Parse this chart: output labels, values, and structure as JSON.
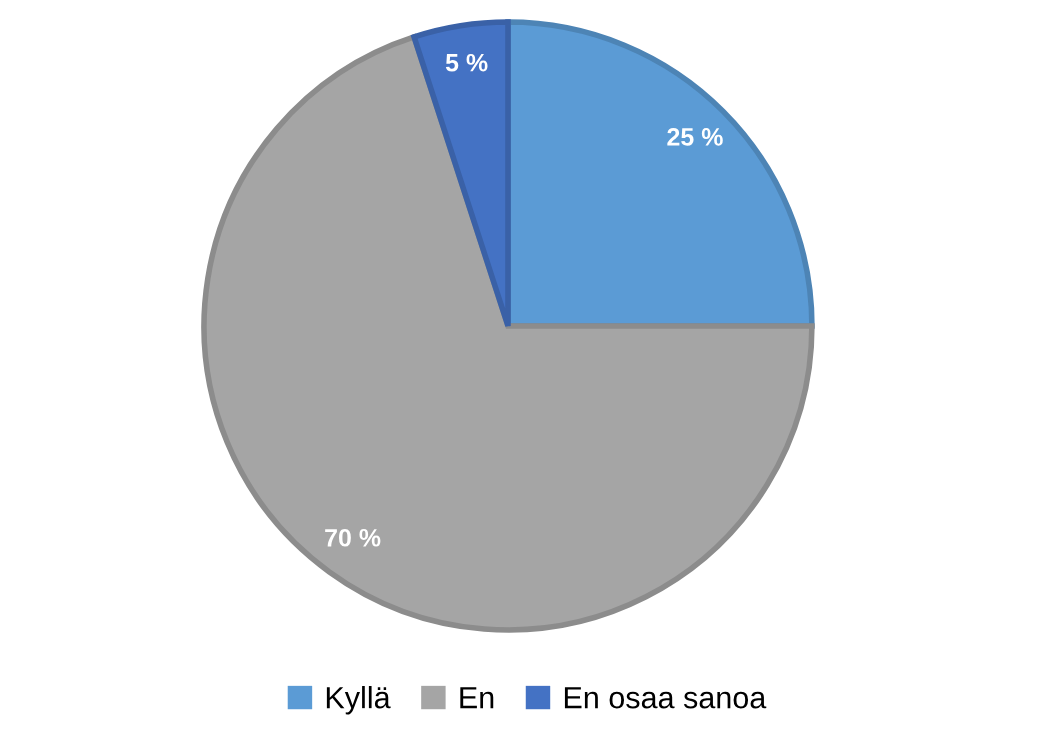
{
  "chart_data": {
    "type": "pie",
    "categories": [
      "Kyllä",
      "En",
      "En osaa sanoa"
    ],
    "values": [
      25,
      70,
      5
    ],
    "colors": [
      "#5b9bd5",
      "#a5a5a5",
      "#4472c4"
    ],
    "value_labels": [
      "25 %",
      "70 %",
      "5 %"
    ],
    "legend": "bottom"
  }
}
